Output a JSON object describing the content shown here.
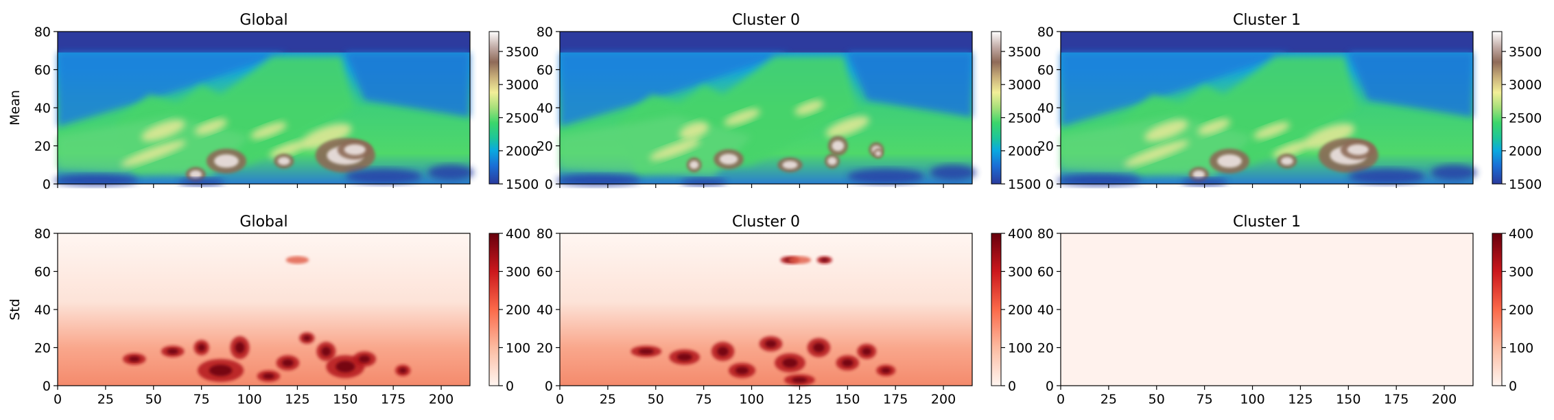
{
  "chart_data": [
    {
      "type": "heatmap",
      "title": "Global",
      "ylabel": "Mean",
      "xlim": [
        0,
        215
      ],
      "ylim": [
        80,
        0
      ],
      "yticks": [
        0,
        20,
        40,
        60,
        80
      ],
      "xticks": [],
      "colormap": "terrain",
      "colorbar": {
        "range": [
          1500,
          3800
        ],
        "ticks": [
          1500,
          2000,
          2500,
          3000,
          3500
        ]
      }
    },
    {
      "type": "heatmap",
      "title": "Cluster 0",
      "ylabel": "",
      "xlim": [
        0,
        215
      ],
      "ylim": [
        80,
        0
      ],
      "yticks": [
        0,
        20,
        40,
        60,
        80
      ],
      "xticks": [],
      "colormap": "terrain",
      "colorbar": {
        "range": [
          1500,
          3800
        ],
        "ticks": [
          1500,
          2000,
          2500,
          3000,
          3500
        ]
      }
    },
    {
      "type": "heatmap",
      "title": "Cluster 1",
      "ylabel": "",
      "xlim": [
        0,
        215
      ],
      "ylim": [
        80,
        0
      ],
      "yticks": [
        0,
        20,
        40,
        60,
        80
      ],
      "xticks": [],
      "colormap": "terrain",
      "colorbar": {
        "range": [
          1500,
          3800
        ],
        "ticks": [
          1500,
          2000,
          2500,
          3000,
          3500
        ]
      }
    },
    {
      "type": "heatmap",
      "title": "Global",
      "ylabel": "Std",
      "xlim": [
        0,
        215
      ],
      "ylim": [
        80,
        0
      ],
      "yticks": [
        0,
        20,
        40,
        60,
        80
      ],
      "xticks": [
        0,
        25,
        50,
        75,
        100,
        125,
        150,
        175,
        200
      ],
      "colormap": "reds",
      "colorbar": {
        "range": [
          0,
          400
        ],
        "ticks": [
          0,
          100,
          200,
          300,
          400
        ]
      }
    },
    {
      "type": "heatmap",
      "title": "Cluster 0",
      "ylabel": "",
      "xlim": [
        0,
        215
      ],
      "ylim": [
        80,
        0
      ],
      "yticks": [
        0,
        20,
        40,
        60,
        80
      ],
      "xticks": [
        0,
        25,
        50,
        75,
        100,
        125,
        150,
        175,
        200
      ],
      "colormap": "reds",
      "colorbar": {
        "range": [
          0,
          400
        ],
        "ticks": [
          0,
          100,
          200,
          300,
          400
        ]
      }
    },
    {
      "type": "heatmap",
      "title": "Cluster 1",
      "ylabel": "",
      "xlim": [
        0,
        215
      ],
      "ylim": [
        80,
        0
      ],
      "yticks": [
        0,
        20,
        40,
        60,
        80
      ],
      "xticks": [
        0,
        25,
        50,
        75,
        100,
        125,
        150,
        175,
        200
      ],
      "colormap": "reds",
      "colorbar": {
        "range": [
          0,
          400
        ],
        "ticks": [
          0,
          100,
          200,
          300,
          400
        ]
      }
    }
  ]
}
